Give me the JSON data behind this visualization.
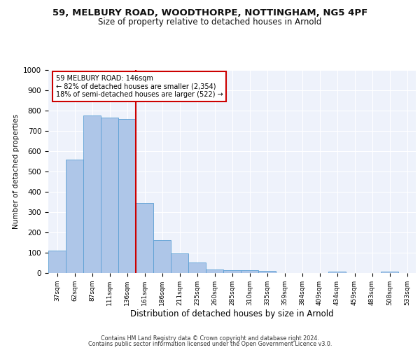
{
  "title_line1": "59, MELBURY ROAD, WOODTHORPE, NOTTINGHAM, NG5 4PF",
  "title_line2": "Size of property relative to detached houses in Arnold",
  "xlabel": "Distribution of detached houses by size in Arnold",
  "ylabel": "Number of detached properties",
  "categories": [
    "37sqm",
    "62sqm",
    "87sqm",
    "111sqm",
    "136sqm",
    "161sqm",
    "186sqm",
    "211sqm",
    "235sqm",
    "260sqm",
    "285sqm",
    "310sqm",
    "335sqm",
    "359sqm",
    "384sqm",
    "409sqm",
    "434sqm",
    "459sqm",
    "483sqm",
    "508sqm",
    "533sqm"
  ],
  "values": [
    110,
    558,
    775,
    765,
    760,
    345,
    163,
    95,
    52,
    17,
    13,
    13,
    10,
    0,
    0,
    0,
    8,
    0,
    0,
    8,
    0
  ],
  "bar_color": "#aec6e8",
  "bar_edge_color": "#5a9fd4",
  "annotation_text": "59 MELBURY ROAD: 146sqm\n← 82% of detached houses are smaller (2,354)\n18% of semi-detached houses are larger (522) →",
  "annotation_box_color": "#ffffff",
  "annotation_box_edge": "#cc0000",
  "vline_color": "#cc0000",
  "vline_x": 4.5,
  "ylim": [
    0,
    1000
  ],
  "yticks": [
    0,
    100,
    200,
    300,
    400,
    500,
    600,
    700,
    800,
    900,
    1000
  ],
  "background_color": "#eef2fb",
  "footer1": "Contains HM Land Registry data © Crown copyright and database right 2024.",
  "footer2": "Contains public sector information licensed under the Open Government Licence v3.0."
}
